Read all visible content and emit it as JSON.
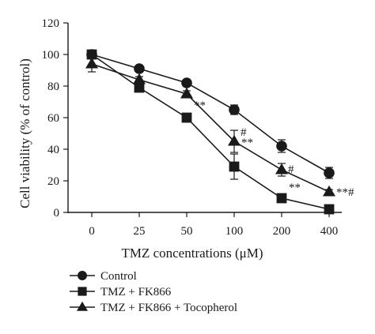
{
  "chart_data": {
    "type": "line",
    "xlabel": "TMZ concentrations (μM)",
    "ylabel": "Cell viability (% of control)",
    "categories": [
      "0",
      "25",
      "50",
      "100",
      "200",
      "400"
    ],
    "ylim": [
      0,
      120
    ],
    "yticks": [
      0,
      20,
      40,
      60,
      80,
      100,
      120
    ],
    "grid": false,
    "legend_position": "bottom-left",
    "series": [
      {
        "name": "Control",
        "marker": "circle",
        "values": [
          100,
          91,
          82,
          65,
          42,
          25
        ],
        "errors": [
          2,
          2,
          1.5,
          3,
          4,
          3.5
        ]
      },
      {
        "name": "TMZ + FK866",
        "marker": "square",
        "values": [
          100,
          79,
          60,
          29,
          9,
          2
        ],
        "errors": [
          2.5,
          2.5,
          1.5,
          8,
          2,
          1
        ]
      },
      {
        "name": "TMZ + FK866 + Tocopherol",
        "marker": "triangle",
        "values": [
          94,
          84,
          75,
          45,
          27,
          13
        ],
        "errors": [
          5,
          2,
          2,
          7,
          4,
          1.5
        ]
      }
    ],
    "annotations": [
      {
        "category": "50",
        "y": 68,
        "text": "**"
      },
      {
        "category": "100",
        "y": 44.5,
        "text": "**"
      },
      {
        "category": "100",
        "y": 51,
        "text": "#"
      },
      {
        "category": "200",
        "y": 16,
        "text": "**"
      },
      {
        "category": "200",
        "y": 27.5,
        "text": "#"
      },
      {
        "category": "400",
        "y": 13,
        "text": "**#"
      }
    ]
  }
}
